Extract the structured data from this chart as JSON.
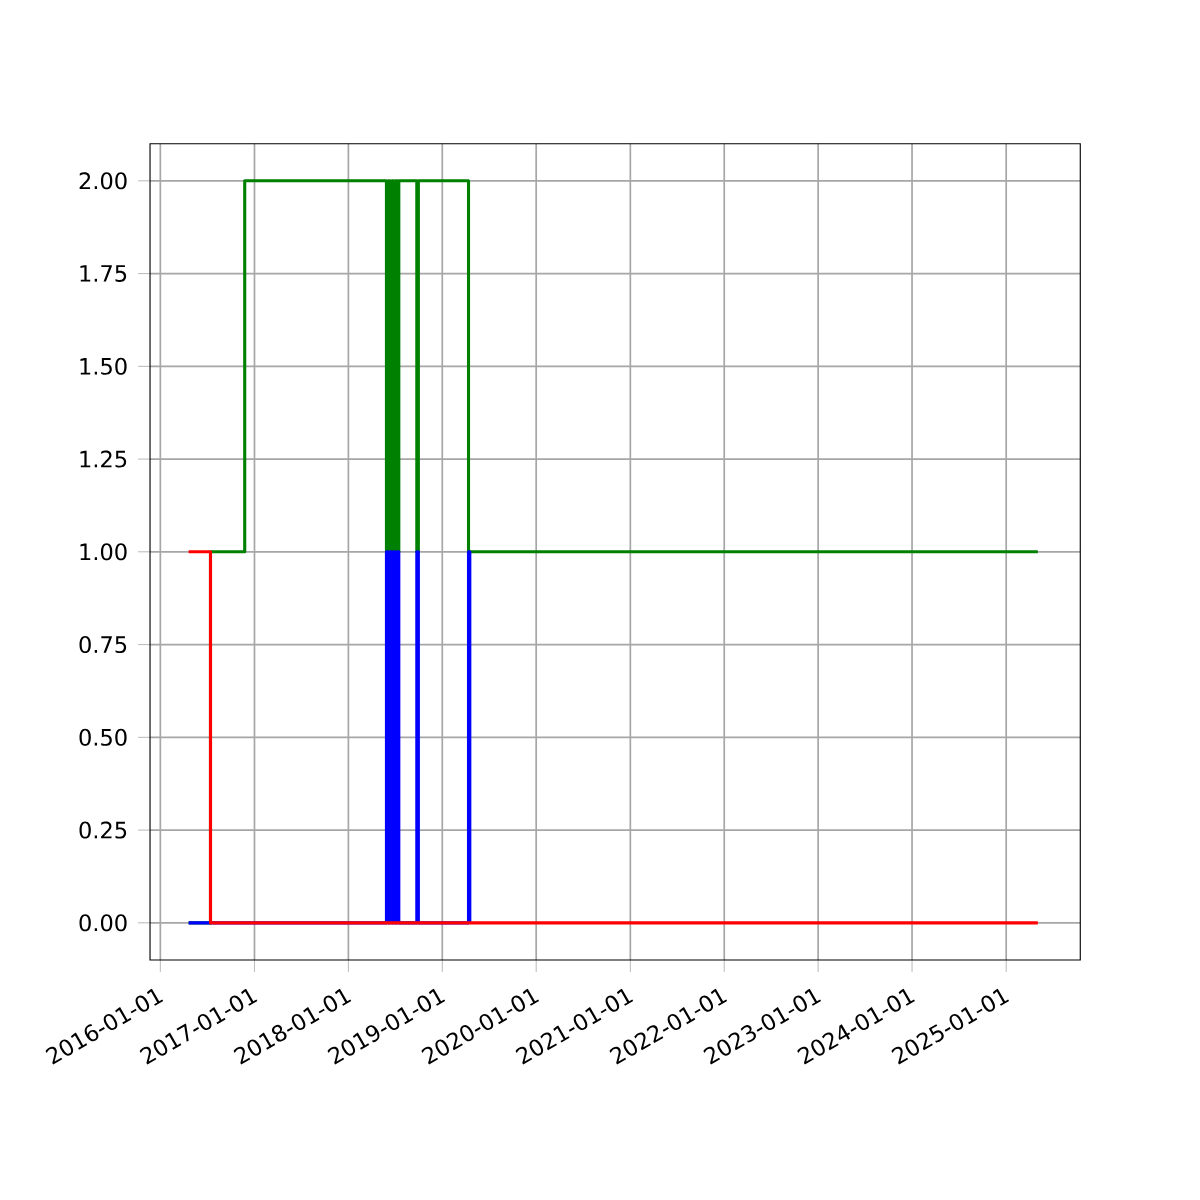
{
  "chart_data": {
    "type": "step",
    "grid": true,
    "marker": "none",
    "line_style": "solid",
    "xlim": [
      "2015-11-22",
      "2025-10-16"
    ],
    "ylim": [
      -0.1,
      2.1
    ],
    "xticks": [
      "2016-01-01",
      "2017-01-01",
      "2018-01-01",
      "2019-01-01",
      "2020-01-01",
      "2021-01-01",
      "2022-01-01",
      "2023-01-01",
      "2024-01-01",
      "2025-01-01"
    ],
    "yticks": [
      {
        "value": 0,
        "label": "0.00"
      },
      {
        "value": 0.25,
        "label": "0.25"
      },
      {
        "value": 0.5,
        "label": "0.50"
      },
      {
        "value": 0.75,
        "label": "0.75"
      },
      {
        "value": 1,
        "label": "1.00"
      },
      {
        "value": 1.25,
        "label": "1.25"
      },
      {
        "value": 1.5,
        "label": "1.50"
      },
      {
        "value": 1.75,
        "label": "1.75"
      },
      {
        "value": 2,
        "label": "2.00"
      }
    ],
    "series": [
      {
        "color": "#008000",
        "x": [
          "2016-04-20",
          "2016-07-14",
          "2016-11-24",
          "2018-05-29",
          "2018-06-05",
          "2018-06-12",
          "2018-06-19",
          "2018-06-26",
          "2018-07-03",
          "2018-07-10",
          "2018-07-16",
          "2018-09-24",
          "2018-09-30",
          "2019-04-13",
          "2025-05-04"
        ],
        "values": [
          0,
          1,
          2,
          1,
          2,
          1,
          2,
          1,
          2,
          1,
          2,
          1,
          2,
          1,
          1
        ]
      },
      {
        "color": "#0000ff",
        "x": [
          "2016-04-20",
          "2018-05-29",
          "2018-06-05",
          "2018-06-12",
          "2018-06-19",
          "2018-06-26",
          "2018-07-03",
          "2018-07-10",
          "2018-07-16",
          "2018-09-24",
          "2018-09-30",
          "2019-04-13",
          "2019-04-18"
        ],
        "values": [
          0,
          1,
          0,
          1,
          0,
          1,
          0,
          1,
          0,
          1,
          0,
          1,
          0
        ]
      },
      {
        "color": "#ff0000",
        "x": [
          "2016-04-20",
          "2016-07-14",
          "2025-05-04"
        ],
        "values": [
          1,
          0,
          0
        ]
      }
    ]
  }
}
